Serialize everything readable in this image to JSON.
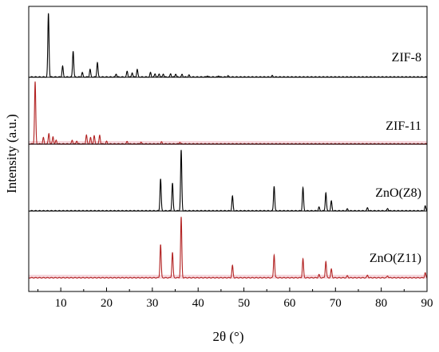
{
  "chart_data": {
    "type": "line",
    "xlabel": "2θ (°)",
    "ylabel": "Intensity (a.u.)",
    "xlim": [
      3,
      90
    ],
    "x_ticks": [
      10,
      20,
      30,
      40,
      50,
      60,
      70,
      80,
      90
    ],
    "y_ticks_shown": false,
    "series": [
      {
        "name": "ZIF-8",
        "color": "#000000",
        "peaks": [
          [
            7.3,
            1.0
          ],
          [
            10.4,
            0.17
          ],
          [
            12.7,
            0.41
          ],
          [
            14.7,
            0.07
          ],
          [
            16.4,
            0.12
          ],
          [
            18.0,
            0.23
          ],
          [
            22.1,
            0.05
          ],
          [
            24.5,
            0.09
          ],
          [
            25.6,
            0.07
          ],
          [
            26.7,
            0.12
          ],
          [
            29.6,
            0.07
          ],
          [
            30.6,
            0.05
          ],
          [
            31.5,
            0.05
          ],
          [
            32.4,
            0.05
          ],
          [
            34.0,
            0.05
          ],
          [
            35.1,
            0.05
          ],
          [
            36.5,
            0.04
          ],
          [
            38.0,
            0.03
          ],
          [
            42.0,
            0.02
          ],
          [
            44.5,
            0.02
          ],
          [
            46.5,
            0.02
          ],
          [
            56.2,
            0.02
          ]
        ]
      },
      {
        "name": "ZIF-11",
        "color": "#b22222",
        "peaks": [
          [
            4.4,
            1.0
          ],
          [
            6.2,
            0.1
          ],
          [
            7.4,
            0.17
          ],
          [
            8.3,
            0.12
          ],
          [
            9.0,
            0.06
          ],
          [
            12.5,
            0.06
          ],
          [
            13.5,
            0.05
          ],
          [
            15.6,
            0.14
          ],
          [
            16.5,
            0.1
          ],
          [
            17.3,
            0.13
          ],
          [
            18.5,
            0.14
          ],
          [
            20.0,
            0.04
          ],
          [
            24.5,
            0.04
          ],
          [
            27.5,
            0.03
          ],
          [
            32.0,
            0.03
          ],
          [
            36.0,
            0.03
          ]
        ]
      },
      {
        "name": "ZnO(Z8)",
        "color": "#000000",
        "peaks": [
          [
            31.8,
            0.53
          ],
          [
            34.4,
            0.46
          ],
          [
            36.3,
            1.0
          ],
          [
            47.5,
            0.24
          ],
          [
            56.6,
            0.41
          ],
          [
            62.9,
            0.38
          ],
          [
            66.4,
            0.06
          ],
          [
            67.9,
            0.3
          ],
          [
            69.1,
            0.16
          ],
          [
            72.6,
            0.03
          ],
          [
            77.0,
            0.05
          ],
          [
            81.4,
            0.04
          ],
          [
            89.6,
            0.08
          ]
        ]
      },
      {
        "name": "ZnO(Z11)",
        "color": "#b22222",
        "peaks": [
          [
            31.8,
            0.55
          ],
          [
            34.4,
            0.42
          ],
          [
            36.3,
            1.0
          ],
          [
            47.5,
            0.2
          ],
          [
            56.6,
            0.38
          ],
          [
            62.9,
            0.31
          ],
          [
            66.4,
            0.05
          ],
          [
            67.9,
            0.27
          ],
          [
            69.1,
            0.14
          ],
          [
            72.6,
            0.03
          ],
          [
            77.0,
            0.04
          ],
          [
            81.4,
            0.03
          ],
          [
            89.6,
            0.08
          ]
        ]
      }
    ],
    "separators": true,
    "grid": false,
    "legend": "none"
  }
}
